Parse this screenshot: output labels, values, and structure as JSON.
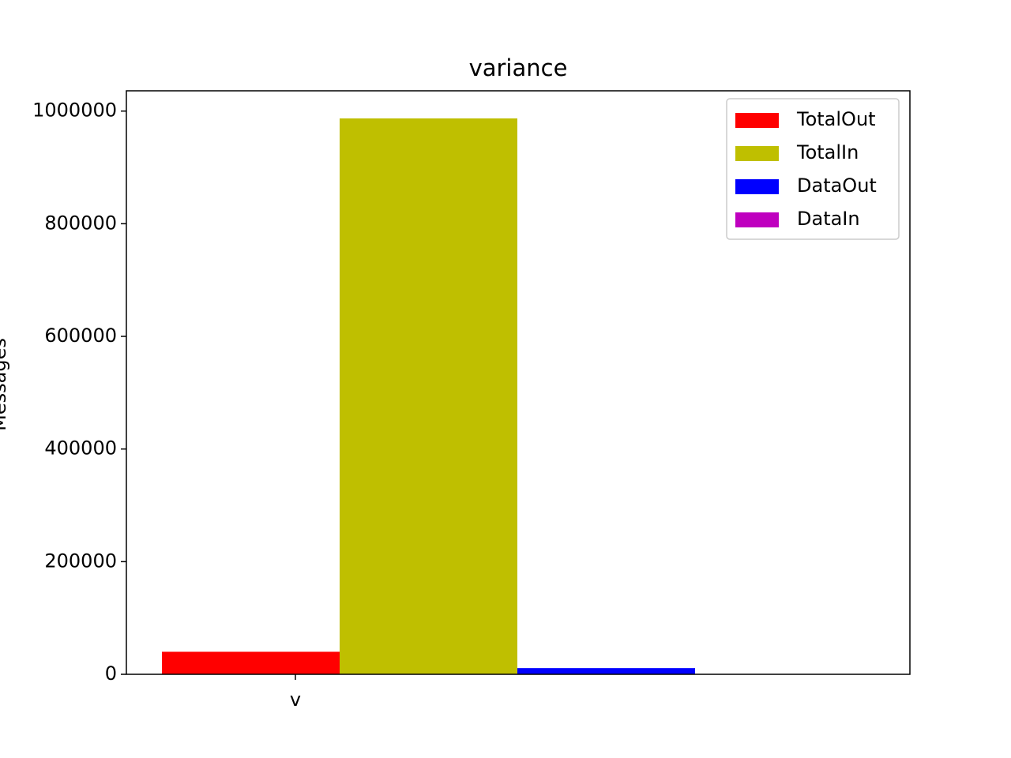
{
  "chart_data": {
    "type": "bar",
    "title": "variance",
    "y_label": "Messages",
    "categories": [
      "v"
    ],
    "series": [
      {
        "name": "TotalOut",
        "color": "#ff0000",
        "values": [
          40000
        ]
      },
      {
        "name": "TotalIn",
        "color": "#bfbf00",
        "values": [
          987000
        ]
      },
      {
        "name": "DataOut",
        "color": "#0000ff",
        "values": [
          11000
        ]
      },
      {
        "name": "DataIn",
        "color": "#bf00bf",
        "values": [
          0
        ]
      }
    ],
    "ylim": [
      0,
      1036000
    ],
    "yticks": [
      0,
      200000,
      400000,
      600000,
      800000,
      1000000
    ],
    "grid": false,
    "legend": "upper right"
  }
}
